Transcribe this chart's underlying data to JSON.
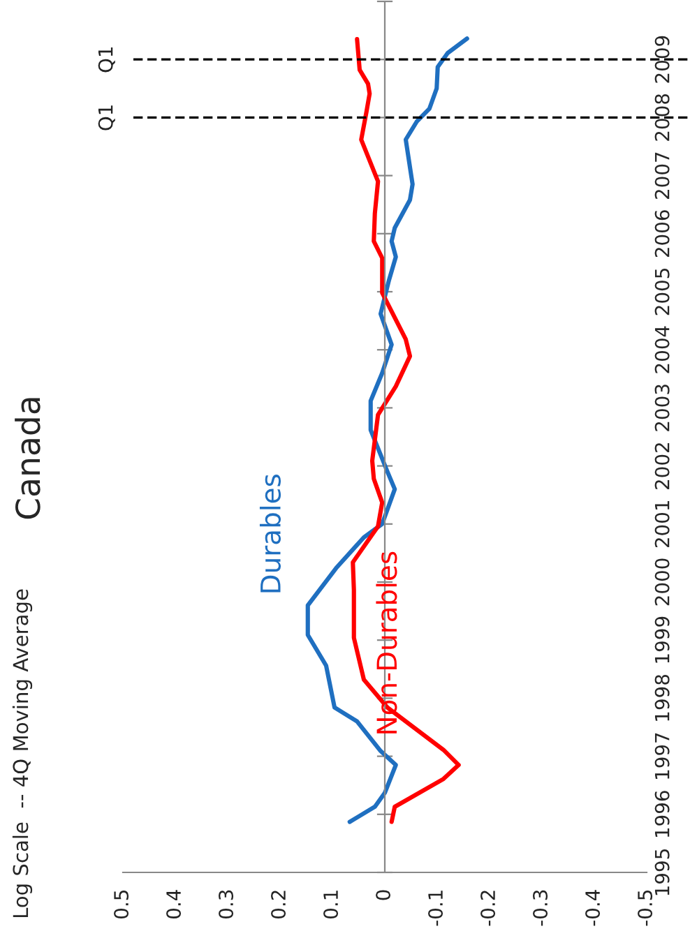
{
  "chart_data": {
    "type": "line",
    "title": "Canada",
    "annotations": [
      "Log Scale  -- 4Q Moving Average"
    ],
    "xlim": [
      0.5,
      -0.5
    ],
    "xticks": [
      0.5,
      0.4,
      0.3,
      0.2,
      0.1,
      0,
      -0.1,
      -0.2,
      -0.3,
      -0.4,
      -0.5
    ],
    "ylim": [
      1995,
      2010
    ],
    "yticks": [
      1995,
      1996,
      1997,
      1998,
      1999,
      2000,
      2001,
      2002,
      2003,
      2004,
      2005,
      2006,
      2007,
      2008,
      2009,
      {
        "value": 2010,
        "label": null
      }
    ],
    "grid": false,
    "legend": false,
    "marker": "none",
    "line_style": "solid",
    "ref_lines": [
      {
        "axis": "y",
        "value": 2008,
        "label": "Q1",
        "color": "#000000",
        "line_style": "dashed"
      },
      {
        "axis": "y",
        "value": 2009,
        "label": "Q1",
        "color": "#000000",
        "line_style": "dashed"
      }
    ],
    "series": [
      {
        "name": "Durables",
        "color": "#1f6fc0",
        "x": [
          0.067,
          0.019,
          0.0,
          -0.021,
          0.008,
          0.053,
          0.096,
          0.112,
          0.147,
          0.147,
          0.093,
          0.04,
          0.005,
          -0.019,
          -0.005,
          0.027,
          0.027,
          0.005,
          -0.013,
          0.008,
          -0.008,
          -0.021,
          -0.013,
          -0.019,
          -0.048,
          -0.053,
          -0.04,
          -0.061,
          -0.085,
          -0.099,
          -0.101,
          -0.12,
          -0.157
        ],
        "values": [
          1995.87,
          1996.13,
          1996.37,
          1996.85,
          1997.09,
          1997.6,
          1997.84,
          1998.56,
          1999.09,
          1999.6,
          2000.24,
          2000.77,
          2001.0,
          2001.6,
          2001.9,
          2002.62,
          2003.12,
          2003.6,
          2004.09,
          2004.62,
          2005.2,
          2005.6,
          2005.87,
          2006.1,
          2006.58,
          2006.85,
          2007.62,
          2007.93,
          2008.15,
          2008.5,
          2008.87,
          2009.11,
          2009.36
        ]
      },
      {
        "name": "Non-Durables",
        "color": "#ff0000",
        "x": [
          -0.013,
          -0.019,
          -0.112,
          -0.141,
          -0.112,
          -0.005,
          0.04,
          0.059,
          0.059,
          0.061,
          0.013,
          0.005,
          0.021,
          0.024,
          0.013,
          -0.021,
          -0.048,
          -0.04,
          0.005,
          0.005,
          0.021,
          0.019,
          0.013,
          0.045,
          0.035,
          0.029,
          0.032,
          0.048,
          0.053
        ],
        "values": [
          1995.87,
          1996.13,
          1996.61,
          1996.85,
          1997.11,
          1997.84,
          1998.32,
          1999.04,
          1999.86,
          2000.34,
          2000.96,
          2001.37,
          2001.78,
          2002.09,
          2002.88,
          2003.37,
          2003.89,
          2004.18,
          2004.98,
          2005.58,
          2005.87,
          2006.35,
          2006.9,
          2007.62,
          2008.1,
          2008.41,
          2008.58,
          2008.82,
          2009.35
        ]
      }
    ]
  }
}
